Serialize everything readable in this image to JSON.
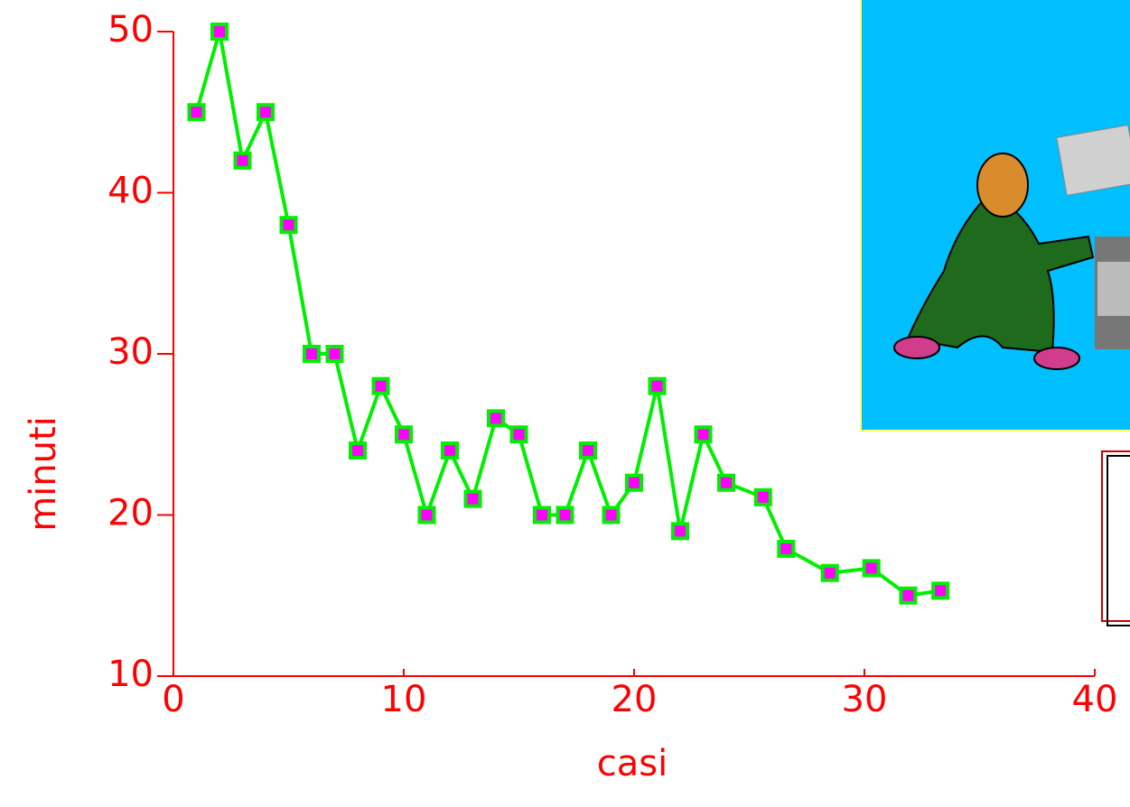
{
  "chart_data": {
    "type": "line",
    "x_label": "casi",
    "y_label": "minuti",
    "x": [
      1,
      2,
      3,
      4,
      5,
      6,
      7,
      8,
      9,
      10,
      11,
      12,
      13,
      14,
      15,
      16,
      17,
      18,
      19,
      20,
      21,
      22,
      23,
      24,
      25.6,
      26.6,
      28.5,
      30.3,
      31.9,
      33.3
    ],
    "series": [
      {
        "color": "#00ee00",
        "marker_color": "#ff00ff",
        "values": [
          45,
          50,
          42,
          45,
          38,
          30,
          30,
          24,
          28,
          25,
          20,
          24,
          21,
          26,
          25,
          20,
          20,
          24,
          20,
          22,
          28,
          19,
          25,
          22,
          21.1,
          17.9,
          16.4,
          16.7,
          15,
          15.3
        ]
      }
    ],
    "xlim": [
      0,
      40
    ],
    "xticks": [
      0,
      10,
      20,
      30,
      40
    ],
    "ylim": [
      10,
      50
    ],
    "yticks": [
      10,
      20,
      30,
      40,
      50
    ],
    "axis_color": "#ff0000"
  }
}
